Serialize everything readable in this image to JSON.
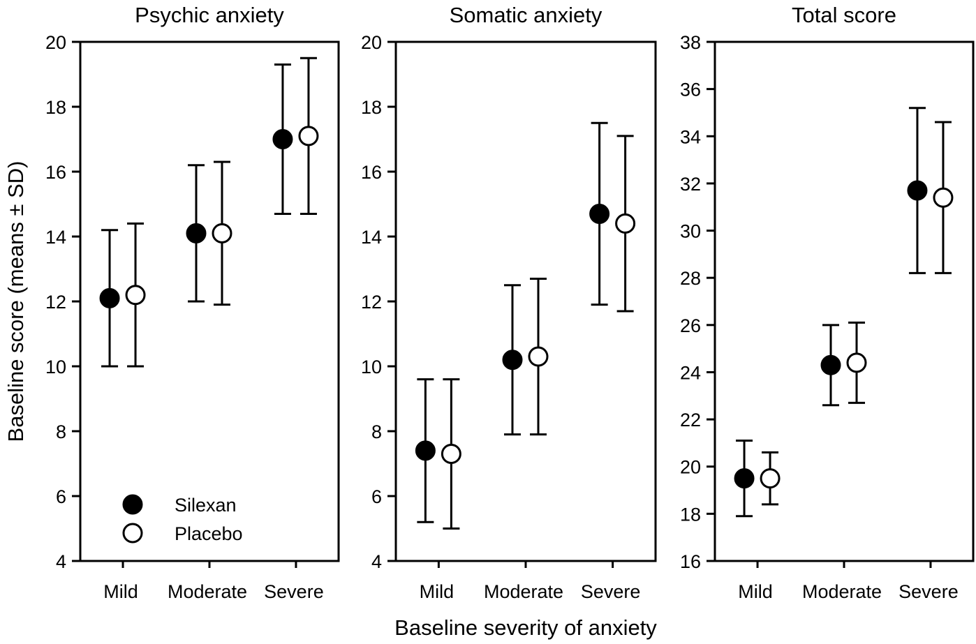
{
  "chart_data": {
    "type": "scatter",
    "subtype": "dot-with-error-bars",
    "shared_xlabel": "Baseline severity of anxiety",
    "shared_ylabel": "Baseline score (means ± SD)",
    "categories": [
      "Mild",
      "Moderate",
      "Severe"
    ],
    "legend": {
      "placement": "bottom-left of first panel",
      "entries": [
        {
          "name": "Silexan",
          "marker": "filled-circle",
          "color": "#000000"
        },
        {
          "name": "Placebo",
          "marker": "open-circle",
          "color": "#ffffff"
        }
      ]
    },
    "panels": [
      {
        "title": "Psychic anxiety",
        "ylim": [
          4,
          20
        ],
        "yticks": [
          4,
          6,
          8,
          10,
          12,
          14,
          16,
          18,
          20
        ],
        "series": [
          {
            "name": "Silexan",
            "mean": [
              12.1,
              14.1,
              17.0
            ],
            "lower": [
              10.0,
              12.0,
              14.7
            ],
            "upper": [
              14.2,
              16.2,
              19.3
            ]
          },
          {
            "name": "Placebo",
            "mean": [
              12.2,
              14.1,
              17.1
            ],
            "lower": [
              10.0,
              11.9,
              14.7
            ],
            "upper": [
              14.4,
              16.3,
              19.5
            ]
          }
        ]
      },
      {
        "title": "Somatic anxiety",
        "ylim": [
          4,
          20
        ],
        "yticks": [
          4,
          6,
          8,
          10,
          12,
          14,
          16,
          18,
          20
        ],
        "series": [
          {
            "name": "Silexan",
            "mean": [
              7.4,
              10.2,
              14.7
            ],
            "lower": [
              5.2,
              7.9,
              11.9
            ],
            "upper": [
              9.6,
              12.5,
              17.5
            ]
          },
          {
            "name": "Placebo",
            "mean": [
              7.3,
              10.3,
              14.4
            ],
            "lower": [
              5.0,
              7.9,
              11.7
            ],
            "upper": [
              9.6,
              12.7,
              17.1
            ]
          }
        ]
      },
      {
        "title": "Total score",
        "ylim": [
          16,
          38
        ],
        "yticks": [
          16,
          18,
          20,
          22,
          24,
          26,
          28,
          30,
          32,
          34,
          36,
          38
        ],
        "series": [
          {
            "name": "Silexan",
            "mean": [
              19.5,
              24.3,
              31.7
            ],
            "lower": [
              17.9,
              22.6,
              28.2
            ],
            "upper": [
              21.1,
              26.0,
              35.2
            ]
          },
          {
            "name": "Placebo",
            "mean": [
              19.5,
              24.4,
              31.4
            ],
            "lower": [
              18.4,
              22.7,
              28.2
            ],
            "upper": [
              20.6,
              26.1,
              34.6
            ]
          }
        ]
      }
    ]
  }
}
